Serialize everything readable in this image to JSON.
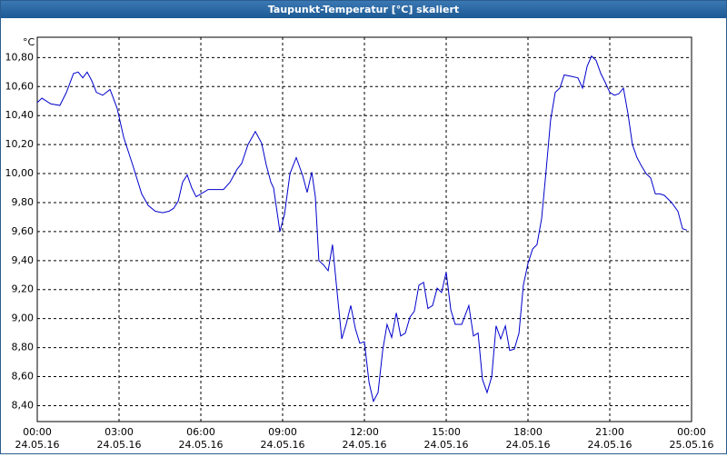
{
  "chart_data": {
    "type": "line",
    "title": "Taupunkt-Temperatur [°C] skaliert",
    "y_unit": "°C",
    "grid": true,
    "xlim": [
      0,
      24
    ],
    "xticks": [
      {
        "value": 0,
        "label": "00:00"
      },
      {
        "value": 3,
        "label": "03:00"
      },
      {
        "value": 6,
        "label": "06:00"
      },
      {
        "value": 9,
        "label": "09:00"
      },
      {
        "value": 12,
        "label": "12:00"
      },
      {
        "value": 15,
        "label": "15:00"
      },
      {
        "value": 18,
        "label": "18:00"
      },
      {
        "value": 21,
        "label": "21:00"
      },
      {
        "value": 24,
        "label": "00:00"
      }
    ],
    "xtick_dates": [
      "24.05.16",
      "24.05.16",
      "24.05.16",
      "24.05.16",
      "24.05.16",
      "24.05.16",
      "24.05.16",
      "24.05.16",
      "25.05.16"
    ],
    "ylim": [
      8.29,
      10.94
    ],
    "yticks": [
      {
        "value": 8.4,
        "label": "8,40"
      },
      {
        "value": 8.6,
        "label": "8,60"
      },
      {
        "value": 8.8,
        "label": "8,80"
      },
      {
        "value": 9.0,
        "label": "9,00"
      },
      {
        "value": 9.2,
        "label": "9,20"
      },
      {
        "value": 9.4,
        "label": "9,40"
      },
      {
        "value": 9.6,
        "label": "9,60"
      },
      {
        "value": 9.8,
        "label": "9,80"
      },
      {
        "value": 10.0,
        "label": "10,00"
      },
      {
        "value": 10.2,
        "label": "10,20"
      },
      {
        "value": 10.4,
        "label": "10,40"
      },
      {
        "value": 10.6,
        "label": "10,60"
      },
      {
        "value": 10.8,
        "label": "10,80"
      }
    ],
    "x": [
      0,
      0.17,
      0.5,
      0.83,
      1.07,
      1.33,
      1.5,
      1.67,
      1.83,
      2.0,
      2.17,
      2.4,
      2.67,
      2.93,
      3.17,
      3.5,
      3.83,
      4.07,
      4.33,
      4.6,
      4.83,
      5.0,
      5.17,
      5.33,
      5.5,
      5.67,
      5.83,
      6.0,
      6.27,
      6.5,
      6.83,
      7.07,
      7.33,
      7.5,
      7.73,
      8.0,
      8.23,
      8.4,
      8.57,
      8.67,
      8.9,
      9.07,
      9.27,
      9.5,
      9.73,
      9.9,
      10.07,
      10.2,
      10.33,
      10.5,
      10.67,
      10.83,
      11.0,
      11.17,
      11.33,
      11.5,
      11.67,
      11.83,
      12.0,
      12.17,
      12.33,
      12.5,
      12.67,
      12.83,
      13.0,
      13.17,
      13.33,
      13.5,
      13.67,
      13.83,
      14.0,
      14.17,
      14.33,
      14.5,
      14.67,
      14.83,
      15.0,
      15.17,
      15.33,
      15.57,
      15.83,
      16.0,
      16.17,
      16.33,
      16.5,
      16.67,
      16.83,
      17.0,
      17.17,
      17.33,
      17.5,
      17.67,
      17.83,
      18.0,
      18.17,
      18.33,
      18.5,
      18.67,
      18.83,
      19.0,
      19.17,
      19.33,
      19.6,
      19.83,
      20.0,
      20.17,
      20.33,
      20.5,
      20.67,
      20.83,
      21.0,
      21.17,
      21.33,
      21.5,
      21.67,
      21.83,
      22.0,
      22.17,
      22.33,
      22.5,
      22.67,
      22.83,
      23.0,
      23.27,
      23.5,
      23.67,
      23.83
    ],
    "series": [
      {
        "color": "#0000cc",
        "values": [
          10.49,
          10.52,
          10.48,
          10.47,
          10.56,
          10.69,
          10.7,
          10.66,
          10.7,
          10.64,
          10.56,
          10.54,
          10.58,
          10.45,
          10.25,
          10.06,
          9.86,
          9.78,
          9.74,
          9.73,
          9.74,
          9.76,
          9.81,
          9.94,
          9.99,
          9.9,
          9.84,
          9.86,
          9.89,
          9.89,
          9.89,
          9.94,
          10.03,
          10.07,
          10.2,
          10.29,
          10.21,
          10.06,
          9.94,
          9.9,
          9.6,
          9.72,
          10.0,
          10.11,
          9.99,
          9.87,
          10.01,
          9.84,
          9.4,
          9.37,
          9.33,
          9.51,
          9.18,
          8.86,
          8.96,
          9.09,
          8.93,
          8.83,
          8.84,
          8.56,
          8.43,
          8.49,
          8.78,
          8.96,
          8.87,
          9.04,
          8.88,
          8.9,
          9.01,
          9.05,
          9.23,
          9.25,
          9.07,
          9.09,
          9.21,
          9.18,
          9.32,
          9.06,
          8.96,
          8.96,
          9.09,
          8.88,
          8.9,
          8.58,
          8.49,
          8.6,
          8.95,
          8.86,
          8.95,
          8.78,
          8.79,
          8.9,
          9.23,
          9.38,
          9.48,
          9.51,
          9.69,
          10.03,
          10.37,
          10.56,
          10.59,
          10.68,
          10.67,
          10.66,
          10.59,
          10.74,
          10.81,
          10.78,
          10.69,
          10.63,
          10.56,
          10.54,
          10.55,
          10.59,
          10.41,
          10.2,
          10.11,
          10.05,
          10.0,
          9.97,
          9.86,
          9.86,
          9.85,
          9.8,
          9.74,
          9.62,
          9.61
        ]
      }
    ]
  }
}
